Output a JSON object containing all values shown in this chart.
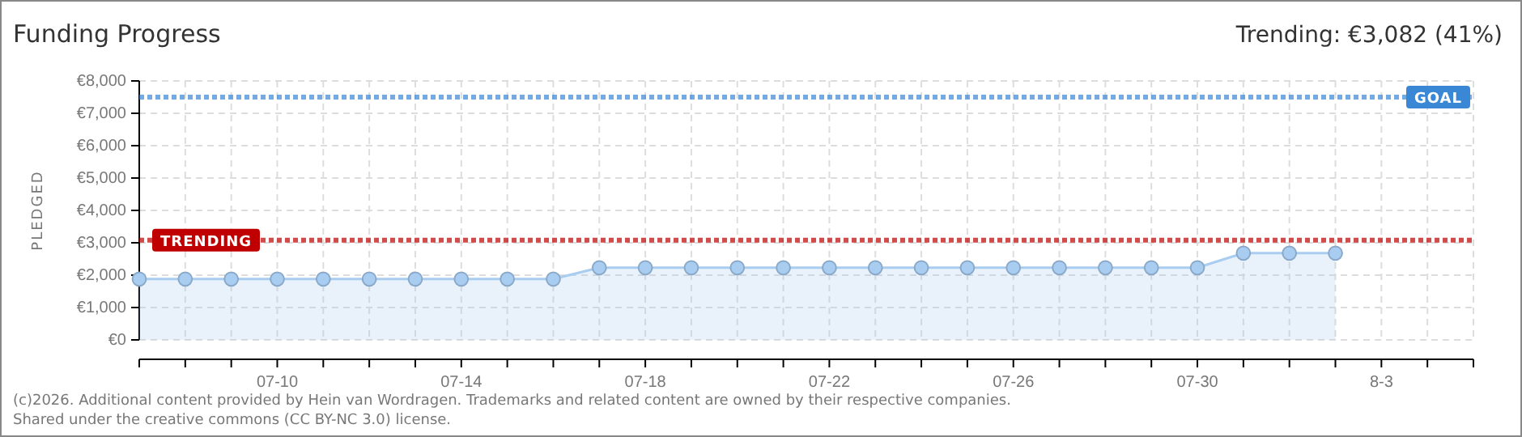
{
  "chart_data": {
    "type": "area",
    "title": "Funding Progress",
    "ylabel": "PLEDGED",
    "x": [
      "--07-07",
      "--07-08",
      "--07-09",
      "--07-10",
      "--07-11",
      "--07-12",
      "--07-13",
      "--07-14",
      "--07-15",
      "--07-16",
      "--07-17",
      "--07-18",
      "--07-19",
      "--07-20",
      "--07-21",
      "--07-22",
      "--07-23",
      "--07-24",
      "--07-25",
      "--07-26",
      "--07-27",
      "--07-28",
      "--07-29",
      "--07-30",
      "--07-31",
      "--08-01",
      "--08-02"
    ],
    "series": [
      {
        "color": "#a9cdf0",
        "values": [
          1880,
          1880,
          1880,
          1880,
          1880,
          1880,
          1880,
          1880,
          1880,
          1880,
          2230,
          2230,
          2230,
          2230,
          2230,
          2230,
          2230,
          2230,
          2230,
          2230,
          2230,
          2230,
          2230,
          2230,
          2680,
          2680,
          2680
        ]
      }
    ],
    "xlim": [
      "--07-07",
      "--08-05"
    ],
    "xticks": [
      {
        "value": "--07-07",
        "label": null
      },
      {
        "value": "--07-08",
        "label": null
      },
      {
        "value": "--07-09",
        "label": null
      },
      {
        "value": "--07-10",
        "label": "07-10"
      },
      {
        "value": "--07-11",
        "label": null
      },
      {
        "value": "--07-12",
        "label": null
      },
      {
        "value": "--07-13",
        "label": null
      },
      {
        "value": "--07-14",
        "label": "07-14"
      },
      {
        "value": "--07-15",
        "label": null
      },
      {
        "value": "--07-16",
        "label": null
      },
      {
        "value": "--07-17",
        "label": null
      },
      {
        "value": "--07-18",
        "label": "07-18"
      },
      {
        "value": "--07-19",
        "label": null
      },
      {
        "value": "--07-20",
        "label": null
      },
      {
        "value": "--07-21",
        "label": null
      },
      {
        "value": "--07-22",
        "label": "07-22"
      },
      {
        "value": "--07-23",
        "label": null
      },
      {
        "value": "--07-24",
        "label": null
      },
      {
        "value": "--07-25",
        "label": null
      },
      {
        "value": "--07-26",
        "label": "07-26"
      },
      {
        "value": "--07-27",
        "label": null
      },
      {
        "value": "--07-28",
        "label": null
      },
      {
        "value": "--07-29",
        "label": null
      },
      {
        "value": "--07-30",
        "label": "07-30"
      },
      {
        "value": "--07-31",
        "label": null
      },
      {
        "value": "--08-01",
        "label": null
      },
      {
        "value": "--08-02",
        "label": null
      },
      {
        "value": "--08-03",
        "label": "8-3"
      },
      {
        "value": "--08-04",
        "label": null
      },
      {
        "value": "--08-05",
        "label": null
      }
    ],
    "ylim": [
      0,
      8000
    ],
    "yticks": [
      {
        "value": 0,
        "label": "€0"
      },
      {
        "value": 1000,
        "label": "€1,000"
      },
      {
        "value": 2000,
        "label": "€2,000"
      },
      {
        "value": 3000,
        "label": "€3,000"
      },
      {
        "value": 4000,
        "label": "€4,000"
      },
      {
        "value": 5000,
        "label": "€5,000"
      },
      {
        "value": 6000,
        "label": "€6,000"
      },
      {
        "value": 7000,
        "label": "€7,000"
      },
      {
        "value": 8000,
        "label": "€8,000"
      }
    ],
    "grid": true,
    "marker": "circle",
    "ref_lines": [
      {
        "axis": "y",
        "value": 7500,
        "label": "GOAL",
        "color": "#3a87d6",
        "line_style": "dotted"
      },
      {
        "axis": "y",
        "value": 3082,
        "label": "TRENDING",
        "color": "#c00000",
        "line_style": "dotted"
      }
    ],
    "annotations": [
      "Trending:  €3,082 (41%)",
      "(c)2026. Additional content provided by Hein van Wordragen. Trademarks and related content are owned by their respective companies.",
      "Shared under the creative commons (CC BY-NC 3.0) license."
    ]
  }
}
